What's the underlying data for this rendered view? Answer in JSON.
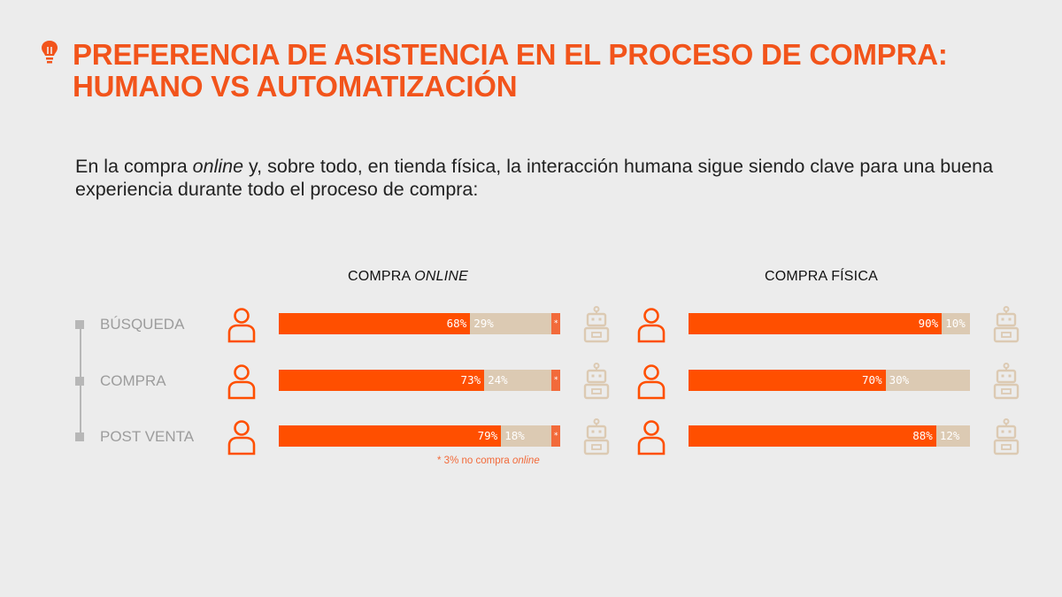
{
  "title": {
    "line1": "PREFERENCIA DE ASISTENCIA EN EL PROCESO DE COMPRA:",
    "line2": "HUMANO VS AUTOMATIZACIÓN",
    "icon": "lightbulb-icon"
  },
  "subtitle": {
    "part1": "En la compra ",
    "part2": "online",
    "part3": " y, sobre todo, en tienda física, la interacción humana sigue siendo clave para una buena experiencia durante todo el proceso de compra:"
  },
  "columns": {
    "online_prefix": "COMPRA ",
    "online_italic": "ONLINE",
    "physical": "COMPRA FÍSICA"
  },
  "footnote": {
    "text": "*  3% no compra ",
    "italic": "online"
  },
  "colors": {
    "human": "#ff4f00",
    "automation": "#dccab3",
    "no_purchase": "#f26a3a",
    "title": "#f2541b"
  },
  "chart_data": [
    {
      "type": "bar",
      "orientation": "horizontal",
      "stacked": true,
      "title": "COMPRA ONLINE",
      "categories": [
        "BÚSQUEDA",
        "COMPRA",
        "POST VENTA"
      ],
      "series": [
        {
          "name": "Humano",
          "values": [
            68,
            73,
            79
          ],
          "labels": [
            "68%",
            "73%",
            "79%"
          ]
        },
        {
          "name": "Automatización",
          "values": [
            29,
            24,
            18
          ],
          "labels": [
            "29%",
            "24%",
            "18%"
          ]
        },
        {
          "name": "No compra online",
          "values": [
            3,
            3,
            3
          ],
          "labels": [
            "*",
            "*",
            "*"
          ]
        }
      ],
      "xlim": [
        0,
        100
      ]
    },
    {
      "type": "bar",
      "orientation": "horizontal",
      "stacked": true,
      "title": "COMPRA FÍSICA",
      "categories": [
        "BÚSQUEDA",
        "COMPRA",
        "POST VENTA"
      ],
      "series": [
        {
          "name": "Humano",
          "values": [
            90,
            70,
            88
          ],
          "labels": [
            "90%",
            "70%",
            "88%"
          ]
        },
        {
          "name": "Automatización",
          "values": [
            10,
            30,
            12
          ],
          "labels": [
            "10%",
            "30%",
            "12%"
          ]
        }
      ],
      "xlim": [
        0,
        100
      ]
    }
  ]
}
